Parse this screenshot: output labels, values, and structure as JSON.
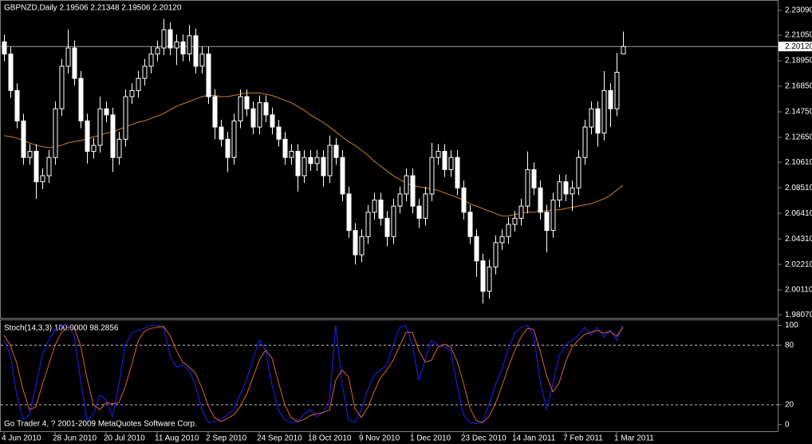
{
  "chart_data": [
    {
      "type": "candlestick",
      "title": "GBPNZD,Daily  2.19506 2.21348 2.19506 2.20120",
      "open": [
        2.205,
        2.195,
        2.165,
        2.14,
        2.11,
        2.115,
        2.09,
        2.095,
        2.11,
        2.15,
        2.185,
        2.2,
        2.175,
        2.14,
        2.115,
        2.12,
        2.15,
        2.145,
        2.11,
        2.125,
        2.16,
        2.165,
        2.175,
        2.185,
        2.195,
        2.2,
        2.215,
        2.2,
        2.205,
        2.195,
        2.21,
        2.185,
        2.195,
        2.16,
        2.135,
        2.125,
        2.11,
        2.14,
        2.16,
        2.15,
        2.135,
        2.155,
        2.145,
        2.135,
        2.125,
        2.11,
        2.115,
        2.095,
        2.11,
        2.105,
        2.11,
        2.095,
        2.12,
        2.11,
        2.08,
        2.05,
        2.03,
        2.045,
        2.065,
        2.075,
        2.06,
        2.045,
        2.07,
        2.08,
        2.095,
        2.07,
        2.06,
        2.08,
        2.11,
        2.115,
        2.1,
        2.11,
        2.085,
        2.065,
        2.045,
        2.025,
        2.0,
        2.02,
        2.04,
        2.045,
        2.055,
        2.06,
        2.07,
        2.1,
        2.085,
        2.065,
        2.05,
        2.075,
        2.09,
        2.08,
        2.085,
        2.11,
        2.135,
        2.15,
        2.13,
        2.165,
        2.15,
        2.19506
      ],
      "high": [
        2.211,
        2.201,
        2.171,
        2.146,
        2.121,
        2.121,
        2.101,
        2.116,
        2.156,
        2.191,
        2.215,
        2.206,
        2.181,
        2.146,
        2.126,
        2.16,
        2.156,
        2.151,
        2.131,
        2.166,
        2.171,
        2.181,
        2.191,
        2.201,
        2.206,
        2.224,
        2.221,
        2.211,
        2.211,
        2.219,
        2.216,
        2.201,
        2.201,
        2.166,
        2.141,
        2.131,
        2.146,
        2.166,
        2.166,
        2.156,
        2.161,
        2.161,
        2.151,
        2.141,
        2.131,
        2.121,
        2.121,
        2.116,
        2.116,
        2.116,
        2.116,
        2.128,
        2.126,
        2.116,
        2.086,
        2.056,
        2.051,
        2.071,
        2.081,
        2.081,
        2.066,
        2.076,
        2.086,
        2.101,
        2.101,
        2.076,
        2.086,
        2.122,
        2.121,
        2.121,
        2.116,
        2.116,
        2.091,
        2.071,
        2.051,
        2.031,
        2.026,
        2.046,
        2.051,
        2.061,
        2.066,
        2.076,
        2.115,
        2.106,
        2.091,
        2.071,
        2.081,
        2.096,
        2.096,
        2.091,
        2.116,
        2.141,
        2.156,
        2.156,
        2.181,
        2.171,
        2.196,
        2.21348
      ],
      "low": [
        2.189,
        2.159,
        2.134,
        2.104,
        2.104,
        2.076,
        2.084,
        2.089,
        2.104,
        2.144,
        2.179,
        2.169,
        2.134,
        2.105,
        2.109,
        2.114,
        2.139,
        2.098,
        2.104,
        2.119,
        2.154,
        2.159,
        2.169,
        2.179,
        2.189,
        2.194,
        2.194,
        2.186,
        2.189,
        2.189,
        2.179,
        2.179,
        2.154,
        2.125,
        2.119,
        2.098,
        2.104,
        2.134,
        2.144,
        2.129,
        2.129,
        2.139,
        2.129,
        2.119,
        2.104,
        2.104,
        2.082,
        2.089,
        2.099,
        2.099,
        2.086,
        2.089,
        2.104,
        2.074,
        2.044,
        2.022,
        2.024,
        2.039,
        2.059,
        2.054,
        2.037,
        2.039,
        2.064,
        2.074,
        2.064,
        2.052,
        2.054,
        2.074,
        2.104,
        2.094,
        2.094,
        2.079,
        2.059,
        2.039,
        2.012,
        1.99,
        1.994,
        2.014,
        2.034,
        2.039,
        2.049,
        2.054,
        2.064,
        2.079,
        2.059,
        2.032,
        2.044,
        2.069,
        2.074,
        2.066,
        2.079,
        2.104,
        2.129,
        2.119,
        2.124,
        2.135,
        2.144,
        2.19506
      ],
      "close": [
        2.195,
        2.165,
        2.14,
        2.11,
        2.115,
        2.09,
        2.095,
        2.11,
        2.15,
        2.185,
        2.2,
        2.175,
        2.14,
        2.115,
        2.12,
        2.15,
        2.145,
        2.11,
        2.125,
        2.16,
        2.165,
        2.175,
        2.185,
        2.195,
        2.2,
        2.215,
        2.2,
        2.205,
        2.195,
        2.21,
        2.185,
        2.195,
        2.16,
        2.135,
        2.125,
        2.11,
        2.14,
        2.16,
        2.15,
        2.135,
        2.155,
        2.145,
        2.135,
        2.125,
        2.11,
        2.115,
        2.095,
        2.11,
        2.105,
        2.11,
        2.095,
        2.12,
        2.11,
        2.08,
        2.05,
        2.03,
        2.045,
        2.065,
        2.075,
        2.06,
        2.045,
        2.07,
        2.08,
        2.095,
        2.07,
        2.06,
        2.08,
        2.11,
        2.115,
        2.1,
        2.11,
        2.085,
        2.065,
        2.045,
        2.025,
        2.0,
        2.02,
        2.04,
        2.045,
        2.055,
        2.06,
        2.07,
        2.1,
        2.085,
        2.065,
        2.05,
        2.075,
        2.09,
        2.08,
        2.085,
        2.11,
        2.135,
        2.15,
        2.13,
        2.165,
        2.15,
        2.18,
        2.2012
      ],
      "up_color": "#000000",
      "down_color": "#ffffff",
      "wick_color": "#ffffff",
      "ma": {
        "color": "#c8822a",
        "values": [
          2.128,
          2.127,
          2.126,
          2.124,
          2.122,
          2.12,
          2.119,
          2.118,
          2.119,
          2.12,
          2.122,
          2.123,
          2.124,
          2.125,
          2.127,
          2.128,
          2.13,
          2.131,
          2.133,
          2.135,
          2.137,
          2.139,
          2.14,
          2.142,
          2.144,
          2.146,
          2.149,
          2.152,
          2.154,
          2.156,
          2.158,
          2.16,
          2.161,
          2.161,
          2.16,
          2.16,
          2.161,
          2.162,
          2.163,
          2.163,
          2.163,
          2.162,
          2.161,
          2.159,
          2.157,
          2.155,
          2.152,
          2.149,
          2.145,
          2.142,
          2.139,
          2.135,
          2.131,
          2.127,
          2.123,
          2.12,
          2.116,
          2.112,
          2.107,
          2.103,
          2.099,
          2.095,
          2.092,
          2.089,
          2.087,
          2.086,
          2.085,
          2.084,
          2.083,
          2.081,
          2.079,
          2.077,
          2.075,
          2.072,
          2.07,
          2.068,
          2.066,
          2.064,
          2.062,
          2.062,
          2.063,
          2.064,
          2.065,
          2.065,
          2.066,
          2.066,
          2.067,
          2.067,
          2.068,
          2.069,
          2.07,
          2.071,
          2.072,
          2.074,
          2.076,
          2.079,
          2.083,
          2.087
        ]
      },
      "last_price": {
        "value": 2.2012,
        "label": "2.20120"
      },
      "ylim": [
        1.9782,
        2.2381
      ],
      "yticks": [
        {
          "value": 2.2309,
          "label": "2.23090"
        },
        {
          "value": 2.2105,
          "label": "2.21050"
        },
        {
          "value": 2.1895,
          "label": "2.18950"
        },
        {
          "value": 2.1685,
          "label": "2.16850"
        },
        {
          "value": 2.1475,
          "label": "2.14750"
        },
        {
          "value": 2.1265,
          "label": "2.12650"
        },
        {
          "value": 2.1061,
          "label": "2.10610"
        },
        {
          "value": 2.0851,
          "label": "2.08510"
        },
        {
          "value": 2.0641,
          "label": "2.06410"
        },
        {
          "value": 2.0431,
          "label": "2.04310"
        },
        {
          "value": 2.0221,
          "label": "2.02210"
        },
        {
          "value": 2.0011,
          "label": "2.00110"
        },
        {
          "value": 1.9807,
          "label": "1.98070"
        }
      ],
      "grid": false
    },
    {
      "type": "line",
      "title": "Stoch(14,3,3) 100.0000 98.2856",
      "footer": "Go Trader 4, ? 2001-2009 MetaQuotes Software Corp.",
      "categories": [
        "4 Jun 2010",
        null,
        null,
        null,
        null,
        null,
        null,
        null,
        "28 Jun 2010",
        null,
        null,
        null,
        null,
        null,
        null,
        null,
        "20 Jul 2010",
        null,
        null,
        null,
        null,
        null,
        null,
        null,
        "11 Aug 2010",
        null,
        null,
        null,
        null,
        null,
        null,
        null,
        "2 Sep 2010",
        null,
        null,
        null,
        null,
        null,
        null,
        null,
        "24 Sep 2010",
        null,
        null,
        null,
        null,
        null,
        null,
        null,
        "18 Oct 2010",
        null,
        null,
        null,
        null,
        null,
        null,
        null,
        "9 Nov 2010",
        null,
        null,
        null,
        null,
        null,
        null,
        null,
        "1 Dec 2010",
        null,
        null,
        null,
        null,
        null,
        null,
        null,
        "23 Dec 2010",
        null,
        null,
        null,
        null,
        null,
        null,
        null,
        "14 Jan 2011",
        null,
        null,
        null,
        null,
        null,
        null,
        null,
        "7 Feb 2011",
        null,
        null,
        null,
        null,
        null,
        null,
        null,
        "1 Mar 2011",
        null
      ],
      "series": [
        {
          "color": "#2020ff",
          "values": [
            85,
            70,
            30,
            5,
            10,
            40,
            70,
            85,
            95,
            100,
            100,
            90,
            45,
            5,
            10,
            30,
            25,
            8,
            40,
            80,
            92,
            95,
            97,
            100,
            100,
            98,
            70,
            58,
            60,
            55,
            40,
            15,
            2,
            3,
            5,
            10,
            15,
            30,
            45,
            65,
            85,
            75,
            40,
            15,
            5,
            2,
            3,
            10,
            15,
            8,
            12,
            25,
            100,
            40,
            5,
            2,
            15,
            35,
            50,
            55,
            60,
            80,
            98,
            100,
            80,
            45,
            65,
            85,
            80,
            78,
            75,
            40,
            10,
            2,
            1,
            2,
            20,
            40,
            55,
            75,
            92,
            98,
            100,
            90,
            45,
            15,
            40,
            70,
            80,
            85,
            90,
            98,
            90,
            98,
            88,
            95,
            85,
            100
          ]
        },
        {
          "color": "#e0603a",
          "values": [
            90,
            80,
            62,
            35,
            15,
            18,
            40,
            60,
            80,
            93,
            98,
            97,
            80,
            47,
            20,
            15,
            22,
            21,
            22,
            38,
            60,
            84,
            94,
            97,
            98,
            99,
            90,
            75,
            63,
            58,
            52,
            37,
            19,
            7,
            3,
            6,
            10,
            18,
            30,
            47,
            65,
            75,
            67,
            43,
            20,
            7,
            3,
            5,
            9,
            11,
            12,
            15,
            45,
            55,
            48,
            16,
            7,
            17,
            33,
            47,
            55,
            65,
            79,
            93,
            93,
            75,
            63,
            65,
            78,
            81,
            78,
            64,
            42,
            17,
            4,
            2,
            8,
            21,
            38,
            57,
            74,
            88,
            97,
            96,
            75,
            50,
            33,
            42,
            63,
            78,
            85,
            91,
            93,
            95,
            92,
            94,
            89,
            98.2856
          ]
        }
      ],
      "levels": [
        80,
        20
      ],
      "ylim": [
        -5.9,
        105.2
      ],
      "yticks": [
        100,
        80,
        20,
        0
      ],
      "grid": false
    }
  ]
}
